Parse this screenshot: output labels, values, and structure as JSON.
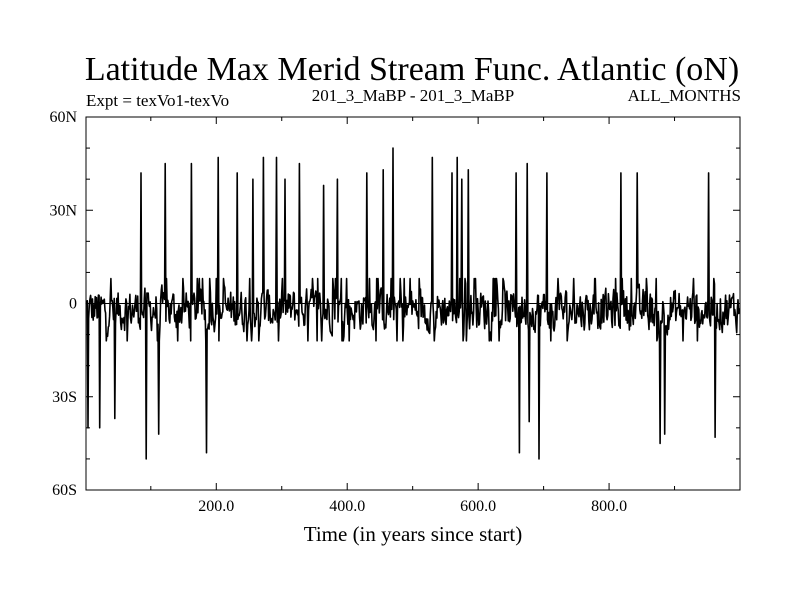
{
  "chart_data": {
    "type": "line",
    "title": "Latitude Max Merid Stream Func. Atlantic (oN)",
    "subtitle_left": "Expt = texVo1-texVo",
    "subtitle_center": "201_3_MaBP - 201_3_MaBP",
    "subtitle_right": "ALL_MONTHS",
    "xlabel": "Time (in years since start)",
    "ylabel": "",
    "xlim": [
      1,
      1000
    ],
    "ylim": [
      -60,
      60
    ],
    "xticks": [
      200,
      400,
      600,
      800
    ],
    "xtick_labels": [
      "200.0",
      "400.0",
      "600.0",
      "800.0"
    ],
    "yticks": [
      -60,
      -30,
      0,
      30,
      60
    ],
    "ytick_labels": [
      "60S",
      "30S",
      "0",
      "30N",
      "60N"
    ],
    "zero_line": true,
    "baseline": {
      "center": -2,
      "amplitude": 6
    },
    "positive_spikes": [
      {
        "x": 85,
        "y": 42
      },
      {
        "x": 122,
        "y": 45
      },
      {
        "x": 162,
        "y": 45
      },
      {
        "x": 203,
        "y": 47
      },
      {
        "x": 232,
        "y": 42
      },
      {
        "x": 256,
        "y": 40
      },
      {
        "x": 272,
        "y": 47
      },
      {
        "x": 292,
        "y": 47
      },
      {
        "x": 305,
        "y": 40
      },
      {
        "x": 327,
        "y": 45
      },
      {
        "x": 364,
        "y": 38
      },
      {
        "x": 385,
        "y": 40
      },
      {
        "x": 430,
        "y": 42
      },
      {
        "x": 455,
        "y": 43
      },
      {
        "x": 470,
        "y": 50
      },
      {
        "x": 530,
        "y": 47
      },
      {
        "x": 560,
        "y": 42
      },
      {
        "x": 568,
        "y": 47
      },
      {
        "x": 575,
        "y": 40
      },
      {
        "x": 585,
        "y": 43
      },
      {
        "x": 658,
        "y": 42
      },
      {
        "x": 675,
        "y": 45
      },
      {
        "x": 705,
        "y": 42
      },
      {
        "x": 818,
        "y": 42
      },
      {
        "x": 843,
        "y": 42
      },
      {
        "x": 952,
        "y": 42
      }
    ],
    "negative_spikes": [
      {
        "x": 4,
        "y": -40
      },
      {
        "x": 22,
        "y": -40
      },
      {
        "x": 45,
        "y": -37
      },
      {
        "x": 93,
        "y": -50
      },
      {
        "x": 112,
        "y": -42
      },
      {
        "x": 185,
        "y": -48
      },
      {
        "x": 663,
        "y": -48
      },
      {
        "x": 678,
        "y": -38
      },
      {
        "x": 693,
        "y": -50
      },
      {
        "x": 878,
        "y": -45
      },
      {
        "x": 885,
        "y": -42
      },
      {
        "x": 962,
        "y": -43
      }
    ],
    "series": [
      {
        "values_note_excluded": false
      }
    ],
    "line_color": "#000000"
  }
}
